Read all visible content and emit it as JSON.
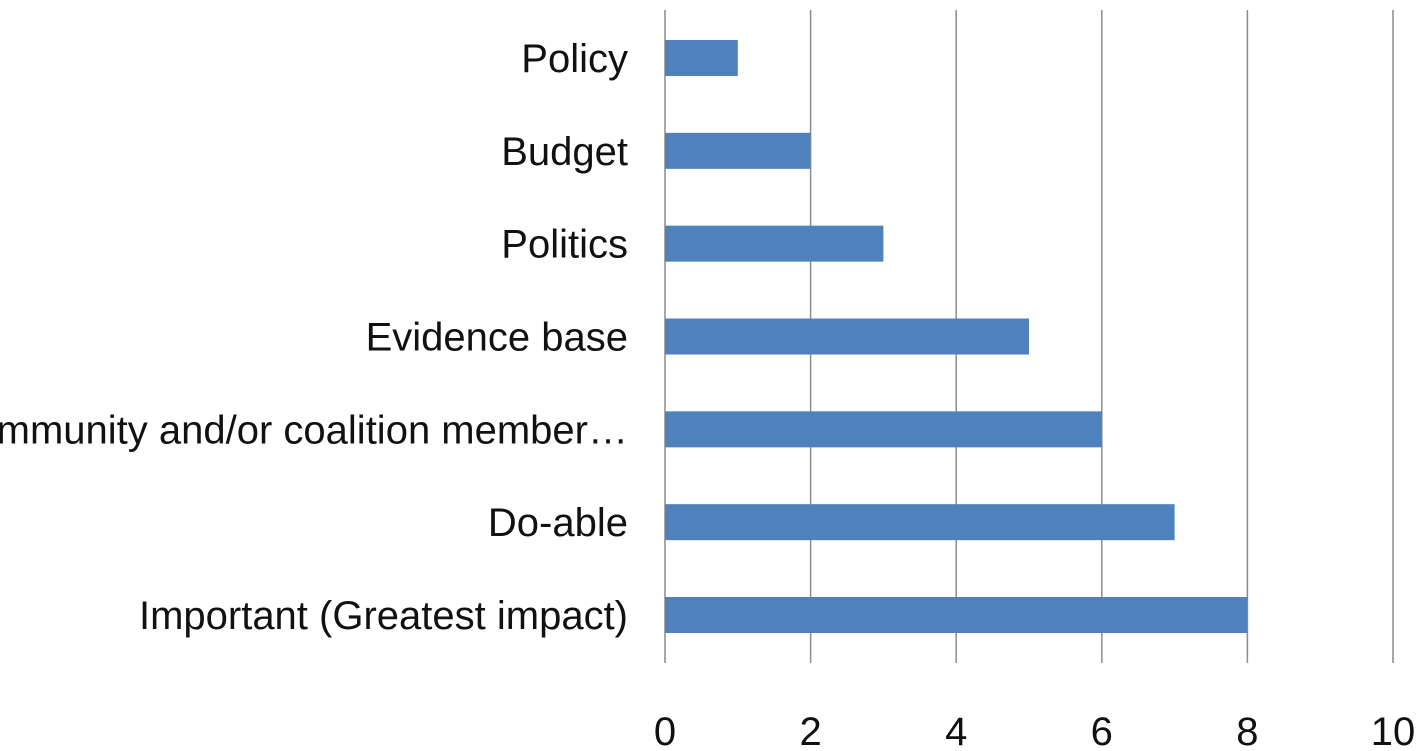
{
  "chart_data": {
    "type": "bar",
    "orientation": "horizontal",
    "categories": [
      "Policy",
      "Budget",
      "Politics",
      "Evidence base",
      "Community and/or coalition member…",
      "Do-able",
      "Important (Greatest impact)"
    ],
    "values": [
      1,
      2,
      3,
      5,
      6,
      7,
      8
    ],
    "xlim": [
      0,
      10
    ],
    "xticks": [
      "0",
      "2",
      "4",
      "6",
      "8",
      "10"
    ],
    "grid": true,
    "legend": "none",
    "bar_color": "#4f81bd",
    "title": "",
    "xlabel": "",
    "ylabel": ""
  }
}
